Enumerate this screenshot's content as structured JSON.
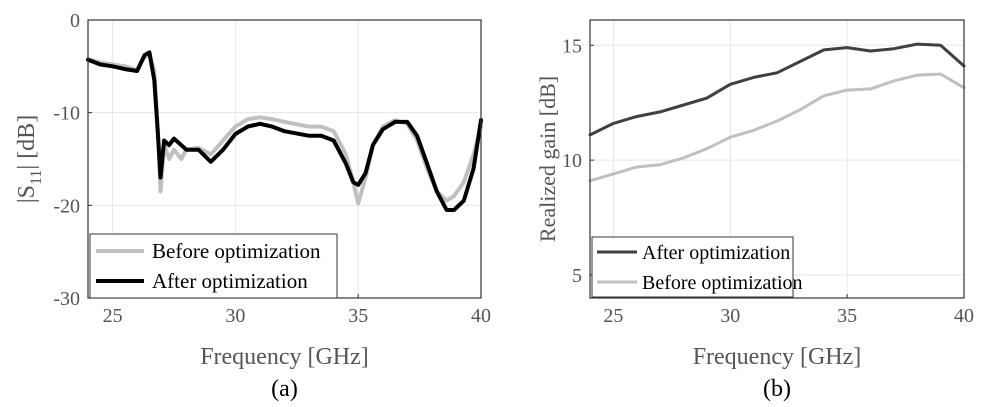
{
  "chart_data": [
    {
      "type": "line",
      "caption": "(a)",
      "xlabel": "Frequency [GHz]",
      "ylabel": "|S",
      "ylabel_sub": "11",
      "ylabel_suffix": "| [dB]",
      "xlim": [
        24,
        40
      ],
      "ylim": [
        -30,
        0
      ],
      "xticks": [
        25,
        30,
        35,
        40
      ],
      "yticks": [
        0,
        -10,
        -20,
        -30
      ],
      "grid": true,
      "legend_position": "bottom-left",
      "series": [
        {
          "name": "Before optimization",
          "color": "#c0c0c0",
          "width": 4,
          "x": [
            24.0,
            24.5,
            25.0,
            25.5,
            26.0,
            26.3,
            26.5,
            26.7,
            26.85,
            26.95,
            27.1,
            27.3,
            27.5,
            27.8,
            28.0,
            28.5,
            29.0,
            29.5,
            30.0,
            30.5,
            31.0,
            31.5,
            32.0,
            33.0,
            33.5,
            34.0,
            34.5,
            34.8,
            35.0,
            35.3,
            35.6,
            36.0,
            36.5,
            37.0,
            37.4,
            37.8,
            38.2,
            38.6,
            38.9,
            39.3,
            39.7,
            40.0
          ],
          "y": [
            -4.2,
            -4.6,
            -4.8,
            -5.0,
            -5.4,
            -4.0,
            -3.8,
            -5.5,
            -12.0,
            -18.5,
            -13.5,
            -15.0,
            -14.0,
            -15.0,
            -14.0,
            -13.8,
            -14.5,
            -13.0,
            -11.5,
            -10.7,
            -10.5,
            -10.7,
            -11.0,
            -11.5,
            -11.5,
            -12.0,
            -14.5,
            -17.5,
            -19.8,
            -17.0,
            -13.5,
            -11.5,
            -10.8,
            -11.2,
            -13.0,
            -16.0,
            -18.5,
            -19.5,
            -19.0,
            -17.5,
            -14.5,
            -11.5
          ]
        },
        {
          "name": "After optimization",
          "color": "#000000",
          "width": 4,
          "x": [
            24.0,
            24.5,
            25.0,
            25.5,
            26.0,
            26.3,
            26.5,
            26.7,
            26.85,
            26.95,
            27.1,
            27.3,
            27.5,
            27.8,
            28.0,
            28.5,
            29.0,
            29.5,
            30.0,
            30.5,
            31.0,
            31.5,
            32.0,
            33.0,
            33.5,
            34.0,
            34.5,
            34.8,
            35.0,
            35.3,
            35.6,
            36.0,
            36.5,
            37.0,
            37.4,
            37.8,
            38.2,
            38.6,
            38.9,
            39.3,
            39.7,
            40.0
          ],
          "y": [
            -4.3,
            -4.8,
            -5.0,
            -5.3,
            -5.5,
            -3.8,
            -3.5,
            -6.5,
            -12.5,
            -17.0,
            -13.0,
            -13.5,
            -12.8,
            -13.5,
            -14.0,
            -14.0,
            -15.3,
            -14.0,
            -12.3,
            -11.5,
            -11.2,
            -11.5,
            -12.0,
            -12.5,
            -12.5,
            -13.0,
            -15.5,
            -17.5,
            -17.8,
            -16.5,
            -13.5,
            -11.8,
            -11.0,
            -11.0,
            -12.5,
            -15.5,
            -18.5,
            -20.5,
            -20.5,
            -19.5,
            -16.0,
            -10.8
          ]
        }
      ]
    },
    {
      "type": "line",
      "caption": "(b)",
      "xlabel": "Frequency [GHz]",
      "ylabel": "Realized gain [dB]",
      "xlim": [
        24,
        40
      ],
      "ylim": [
        4,
        16.1
      ],
      "xticks": [
        25,
        30,
        35,
        40
      ],
      "yticks": [
        5,
        10,
        15
      ],
      "grid": true,
      "legend_position": "bottom-left",
      "series": [
        {
          "name": "After optimization",
          "color": "#404040",
          "width": 3,
          "x": [
            24,
            25,
            26,
            27,
            28,
            29,
            30,
            31,
            32,
            33,
            34,
            35,
            36,
            37,
            38,
            39,
            40
          ],
          "y": [
            11.1,
            11.6,
            11.9,
            12.1,
            12.4,
            12.7,
            13.3,
            13.6,
            13.8,
            14.3,
            14.8,
            14.9,
            14.75,
            14.85,
            15.05,
            15.0,
            14.1
          ]
        },
        {
          "name": "Before optimization",
          "color": "#c0c0c0",
          "width": 3,
          "x": [
            24,
            25,
            26,
            27,
            28,
            29,
            30,
            31,
            32,
            33,
            34,
            35,
            36,
            37,
            38,
            39,
            40
          ],
          "y": [
            9.1,
            9.4,
            9.7,
            9.8,
            10.1,
            10.5,
            11.0,
            11.3,
            11.7,
            12.2,
            12.8,
            13.05,
            13.1,
            13.45,
            13.7,
            13.75,
            13.15
          ]
        }
      ]
    }
  ]
}
